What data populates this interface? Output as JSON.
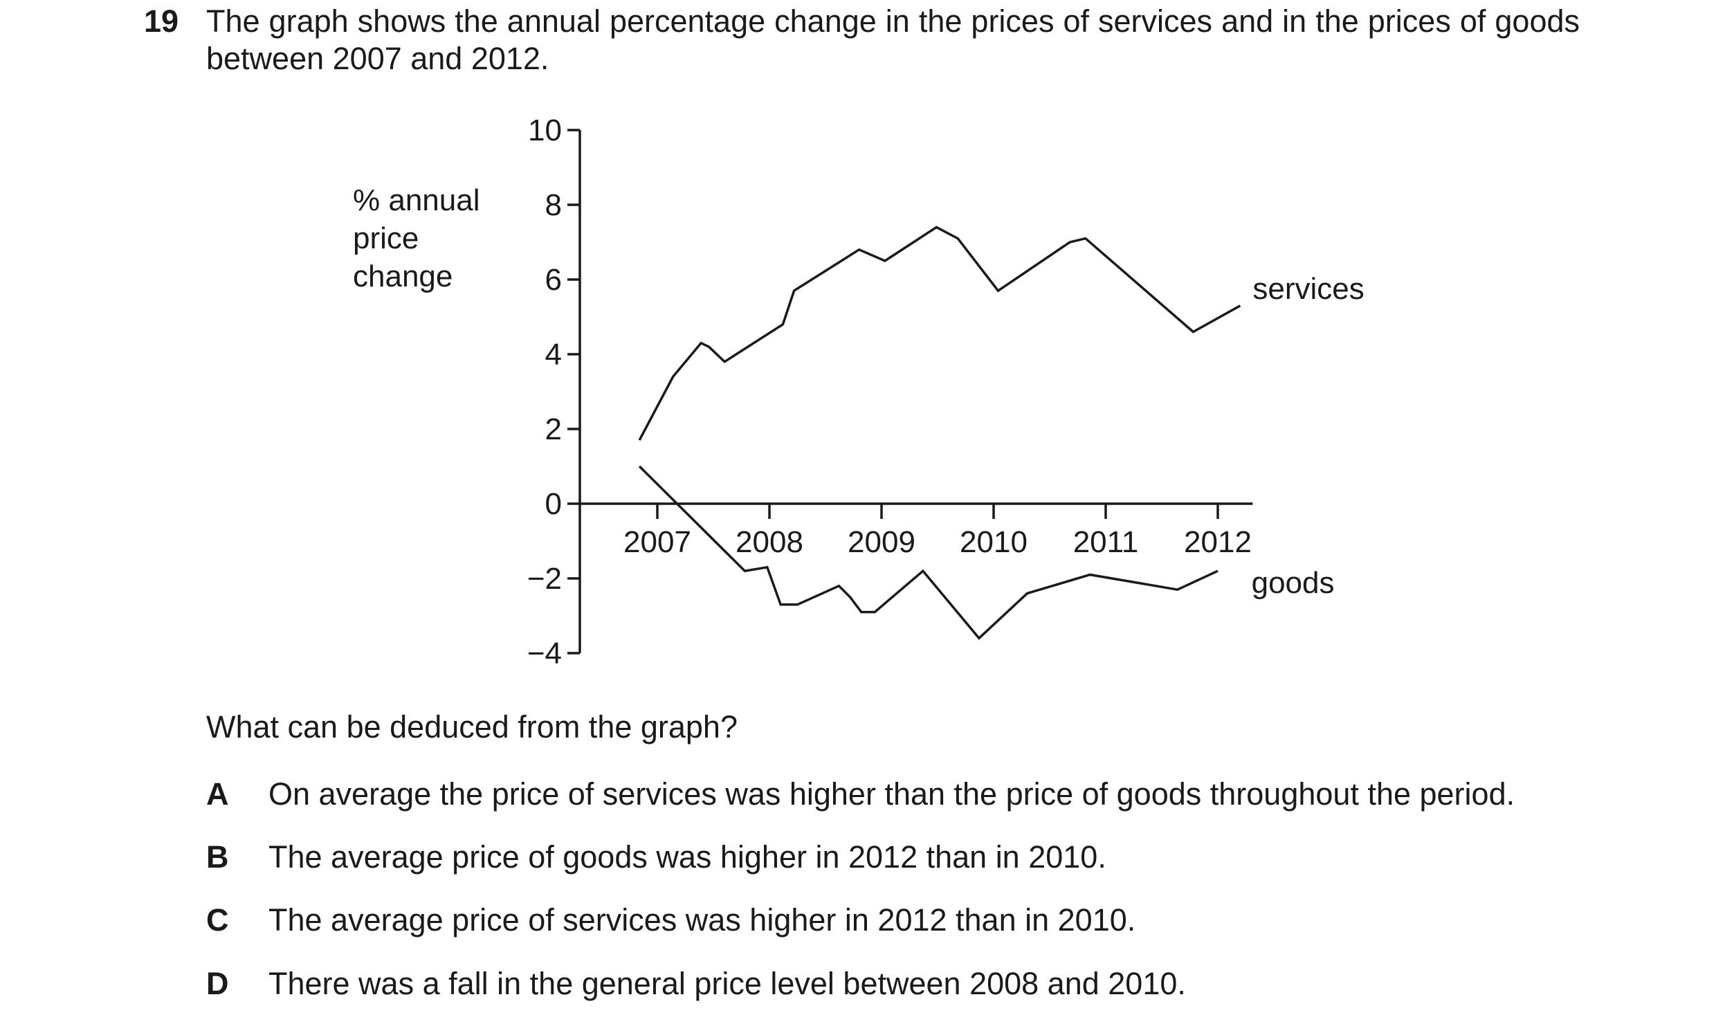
{
  "question": {
    "number": "19",
    "text": "The graph shows the annual percentage change in the prices of services and in the prices of goods between 2007 and 2012.",
    "prompt": "What can be deduced from the graph?",
    "options": [
      {
        "letter": "A",
        "text": "On average the price of services was higher than the price of goods throughout the period."
      },
      {
        "letter": "B",
        "text": "The average price of goods was higher in 2012 than in 2010."
      },
      {
        "letter": "C",
        "text": "The average price of services was higher in 2012 than in 2010."
      },
      {
        "letter": "D",
        "text": "There was a fall in the general price level between 2008 and 2010."
      }
    ]
  },
  "chart_data": {
    "type": "line",
    "title": "",
    "ylabel": "% annual price change",
    "ylabel_lines": [
      "% annual",
      "price",
      "change"
    ],
    "xlabel": "",
    "ylim": [
      -4,
      10
    ],
    "xlim": [
      2006.3,
      2012.2
    ],
    "y_ticks": [
      10,
      8,
      6,
      4,
      2,
      0,
      -2,
      -4
    ],
    "y_tick_labels": [
      "10",
      "8",
      "6",
      "4",
      "2",
      "0",
      "−2",
      "−4"
    ],
    "x_ticks": [
      2007,
      2008,
      2009,
      2010,
      2011,
      2012
    ],
    "x_tick_labels": [
      "2007",
      "2008",
      "2009",
      "2010",
      "2011",
      "2012"
    ],
    "grid": false,
    "legend": "none (series labelled at line ends)",
    "series": [
      {
        "name": "services",
        "x": [
          2006.84,
          2007.14,
          2007.39,
          2007.46,
          2007.6,
          2008.12,
          2008.22,
          2008.8,
          2009.03,
          2009.49,
          2009.68,
          2010.04,
          2010.68,
          2010.82,
          2011.78,
          2012.2
        ],
        "y": [
          1.7,
          3.4,
          4.3,
          4.2,
          3.8,
          4.8,
          5.7,
          6.8,
          6.5,
          7.4,
          7.1,
          5.7,
          7.0,
          7.1,
          4.6,
          5.3
        ]
      },
      {
        "name": "goods",
        "x": [
          2006.84,
          2007.78,
          2007.98,
          2008.1,
          2008.25,
          2008.62,
          2008.72,
          2008.82,
          2008.94,
          2009.37,
          2009.87,
          2010.3,
          2010.86,
          2011.64,
          2012.0
        ],
        "y": [
          1.0,
          -1.8,
          -1.7,
          -2.7,
          -2.7,
          -2.2,
          -2.5,
          -2.9,
          -2.9,
          -1.8,
          -3.6,
          -2.4,
          -1.9,
          -2.3,
          -1.8
        ]
      }
    ]
  }
}
